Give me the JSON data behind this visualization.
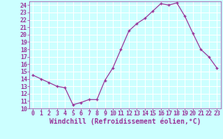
{
  "x": [
    0,
    1,
    2,
    3,
    4,
    5,
    6,
    7,
    8,
    9,
    10,
    11,
    12,
    13,
    14,
    15,
    16,
    17,
    18,
    19,
    20,
    21,
    22,
    23
  ],
  "y": [
    14.5,
    14.0,
    13.5,
    13.0,
    12.8,
    10.5,
    10.8,
    11.2,
    11.2,
    13.8,
    15.5,
    18.0,
    20.5,
    21.5,
    22.2,
    23.2,
    24.2,
    24.0,
    24.3,
    22.5,
    20.2,
    18.0,
    17.0,
    15.5
  ],
  "line_color": "#993399",
  "marker": "+",
  "bg_color": "#ccffff",
  "grid_color": "#ffffff",
  "text_color": "#993399",
  "xlabel": "Windchill (Refroidissement éolien,°C)",
  "ylim": [
    10,
    24.5
  ],
  "xlim": [
    -0.5,
    23.5
  ],
  "yticks": [
    10,
    11,
    12,
    13,
    14,
    15,
    16,
    17,
    18,
    19,
    20,
    21,
    22,
    23,
    24
  ],
  "xticks": [
    0,
    1,
    2,
    3,
    4,
    5,
    6,
    7,
    8,
    9,
    10,
    11,
    12,
    13,
    14,
    15,
    16,
    17,
    18,
    19,
    20,
    21,
    22,
    23
  ],
  "tick_fontsize": 6.0,
  "xlabel_fontsize": 7.0
}
